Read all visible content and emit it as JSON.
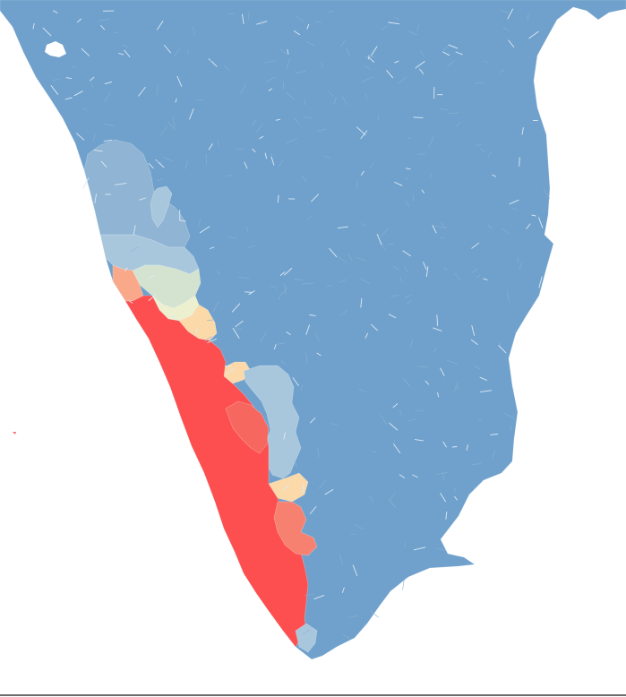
{
  "map": {
    "colors": {
      "background": "#ffffff",
      "base": "#6fa1cc",
      "light_blue": "#8fb4d4",
      "pale_blue": "#a9c7dc",
      "mint": "#d3e3d0",
      "cream": "#ecf0cf",
      "peach": "#fbd9a9",
      "salmon_light": "#f9a98a",
      "salmon": "#f78171",
      "coral": "#f66760",
      "red": "#fd4f4f",
      "red_deep": "#f54a4a",
      "island": "#f07070"
    },
    "zones": [
      {
        "name": "land",
        "color_key": "base"
      },
      {
        "name": "northern-hills",
        "color_key": "light_blue"
      },
      {
        "name": "upper-coast",
        "color_key": "pale_blue"
      },
      {
        "name": "inland-gap",
        "color_key": "pale_blue"
      },
      {
        "name": "central-hills",
        "color_key": "mint"
      },
      {
        "name": "central-valley",
        "color_key": "cream"
      },
      {
        "name": "foothill",
        "color_key": "peach"
      },
      {
        "name": "coastal-north",
        "color_key": "salmon_light"
      },
      {
        "name": "coastal-belt",
        "color_key": "red"
      },
      {
        "name": "inland-belt",
        "color_key": "coral"
      },
      {
        "name": "southern-belt",
        "color_key": "salmon"
      }
    ]
  }
}
